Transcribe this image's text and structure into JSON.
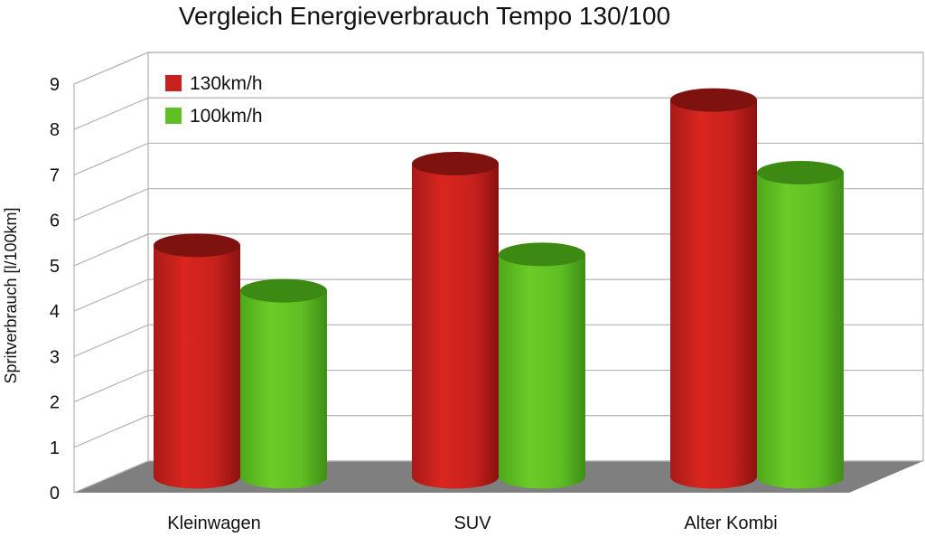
{
  "chart_data": {
    "type": "bar",
    "title": "Vergleich Energieverbrauch Tempo 130/100",
    "xlabel": "",
    "ylabel": "Spritverbrauch [l/100km]",
    "ylim": [
      0,
      9
    ],
    "yticks": [
      0,
      1,
      2,
      3,
      4,
      5,
      6,
      7,
      8,
      9
    ],
    "categories": [
      "Kleinwagen",
      "SUV",
      "Alter Kombi"
    ],
    "series": [
      {
        "name": "130km/h",
        "values": [
          5.1,
          6.9,
          8.3
        ],
        "color": "#c9211e"
      },
      {
        "name": "100km/h",
        "values": [
          4.1,
          4.9,
          6.7
        ],
        "color": "#5fbf23"
      }
    ],
    "legend_position": "top-left",
    "grid": true,
    "style": "3d-cylinder"
  }
}
